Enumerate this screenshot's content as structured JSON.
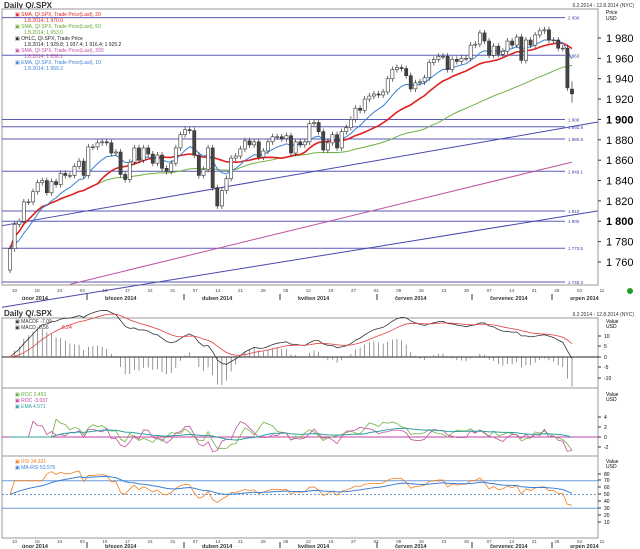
{
  "main": {
    "title": "Daily Q/.SPX",
    "range": "6.2.2014 - 12.8.2014 (NYC)",
    "axis_unit": [
      "Price",
      "USD"
    ],
    "legend": [
      {
        "name": "SMA, Q/.SPX, Trade Price(Last), 20",
        "value": "1.8.2014; 1 970.0",
        "color": "#e02020"
      },
      {
        "name": "SMA, Q/.SPX, Trade Price(Last), 50",
        "value": "1.8.2014; 1 953.0",
        "color": "#60a830"
      },
      {
        "name": "OHLC, Q/.SPX, Trade Price",
        "value": "1.8.2014; 1 929.8; 1 937.4; 1 916.4; 1 925.2",
        "color": "#222222"
      },
      {
        "name": "SMA, Q/.SPX, Trade Price(Last), 200",
        "value": "1.8.2014; 1 858.1",
        "color": "#c050a0"
      },
      {
        "name": "EMA, Q/.SPX, Trade Price(Last), 10",
        "value": "1.8.2014; 1 959.3",
        "color": "#3a7fd5"
      }
    ]
  },
  "chart_data": {
    "type": "candlestick",
    "ylim": [
      1735,
      2005
    ],
    "yticks": [
      1980,
      1960,
      1940,
      1920,
      1900,
      1880,
      1860,
      1840,
      1820,
      1800,
      1780,
      1760
    ],
    "dates": [
      "2014-02-06",
      "2014-02-07",
      "2014-02-10",
      "2014-02-11",
      "2014-02-12",
      "2014-02-13",
      "2014-02-14",
      "2014-02-18",
      "2014-02-19",
      "2014-02-20",
      "2014-02-21",
      "2014-02-24",
      "2014-02-25",
      "2014-02-26",
      "2014-02-27",
      "2014-02-28",
      "2014-03-03",
      "2014-03-04",
      "2014-03-05",
      "2014-03-06",
      "2014-03-07",
      "2014-03-10",
      "2014-03-11",
      "2014-03-12",
      "2014-03-13",
      "2014-03-14",
      "2014-03-17",
      "2014-03-18",
      "2014-03-19",
      "2014-03-20",
      "2014-03-21",
      "2014-03-24",
      "2014-03-25",
      "2014-03-26",
      "2014-03-27",
      "2014-03-28",
      "2014-03-31",
      "2014-04-01",
      "2014-04-02",
      "2014-04-03",
      "2014-04-04",
      "2014-04-07",
      "2014-04-08",
      "2014-04-09",
      "2014-04-10",
      "2014-04-11",
      "2014-04-14",
      "2014-04-15",
      "2014-04-16",
      "2014-04-17",
      "2014-04-21",
      "2014-04-22",
      "2014-04-23",
      "2014-04-24",
      "2014-04-25",
      "2014-04-28",
      "2014-04-29",
      "2014-04-30",
      "2014-05-01",
      "2014-05-02",
      "2014-05-05",
      "2014-05-06",
      "2014-05-07",
      "2014-05-08",
      "2014-05-09",
      "2014-05-12",
      "2014-05-13",
      "2014-05-14",
      "2014-05-15",
      "2014-05-16",
      "2014-05-19",
      "2014-05-20",
      "2014-05-21",
      "2014-05-22",
      "2014-05-23",
      "2014-05-27",
      "2014-05-28",
      "2014-05-29",
      "2014-05-30",
      "2014-06-02",
      "2014-06-03",
      "2014-06-04",
      "2014-06-05",
      "2014-06-06",
      "2014-06-09",
      "2014-06-10",
      "2014-06-11",
      "2014-06-12",
      "2014-06-13",
      "2014-06-16",
      "2014-06-17",
      "2014-06-18",
      "2014-06-19",
      "2014-06-20",
      "2014-06-23",
      "2014-06-24",
      "2014-06-25",
      "2014-06-26",
      "2014-06-27",
      "2014-06-30",
      "2014-07-01",
      "2014-07-02",
      "2014-07-03",
      "2014-07-07",
      "2014-07-08",
      "2014-07-09",
      "2014-07-10",
      "2014-07-11",
      "2014-07-14",
      "2014-07-15",
      "2014-07-16",
      "2014-07-17",
      "2014-07-18",
      "2014-07-21",
      "2014-07-22",
      "2014-07-23",
      "2014-07-24",
      "2014-07-25",
      "2014-07-28",
      "2014-07-29",
      "2014-07-30",
      "2014-07-31",
      "2014-08-01"
    ],
    "close": [
      1773,
      1797,
      1800,
      1819,
      1819,
      1829,
      1838,
      1840,
      1828,
      1839,
      1836,
      1847,
      1845,
      1845,
      1854,
      1859,
      1845,
      1873,
      1873,
      1877,
      1878,
      1877,
      1867,
      1868,
      1846,
      1841,
      1858,
      1872,
      1860,
      1872,
      1866,
      1857,
      1865,
      1852,
      1849,
      1857,
      1872,
      1885,
      1890,
      1889,
      1865,
      1845,
      1851,
      1872,
      1833,
      1815,
      1830,
      1842,
      1862,
      1864,
      1871,
      1879,
      1875,
      1878,
      1863,
      1869,
      1878,
      1883,
      1883,
      1881,
      1884,
      1867,
      1878,
      1875,
      1878,
      1896,
      1897,
      1888,
      1870,
      1877,
      1885,
      1872,
      1888,
      1892,
      1900,
      1911,
      1909,
      1920,
      1923,
      1925,
      1924,
      1927,
      1940,
      1949,
      1951,
      1950,
      1943,
      1930,
      1936,
      1937,
      1941,
      1956,
      1959,
      1962,
      1962,
      1949,
      1959,
      1957,
      1960,
      1960,
      1973,
      1974,
      1985,
      1977,
      1963,
      1972,
      1964,
      1967,
      1977,
      1973,
      1981,
      1958,
      1978,
      1973,
      1983,
      1987,
      1988,
      1978,
      1978,
      1970,
      1970,
      1931,
      1925.2
    ],
    "first_open": 1752,
    "last_ohlc": [
      1929.8,
      1937.4,
      1916.4,
      1925.2
    ],
    "levels": [
      {
        "value": 2000,
        "label": "2 000"
      },
      {
        "value": 1963,
        "label": "1 963"
      },
      {
        "value": 1900,
        "label": "1 900"
      },
      {
        "value": 1892.8,
        "label": "1 892.8"
      },
      {
        "value": 1880.8,
        "label": "1 880.8"
      },
      {
        "value": 1849.1,
        "label": "1 849.1"
      },
      {
        "value": 1810,
        "label": "1 810"
      },
      {
        "value": 1800,
        "label": "1 800"
      },
      {
        "value": 1773.5,
        "label": "1 773.5"
      },
      {
        "value": 1740.3,
        "label": "1 740.3"
      }
    ],
    "trendlines": [
      {
        "from": [
          "2014-02-06",
          1797
        ],
        "to": [
          "2014-08-01",
          1893
        ]
      },
      {
        "from": [
          "2014-03-20",
          1738
        ],
        "to": [
          "2014-08-01",
          1806
        ]
      }
    ],
    "sma200": {
      "from": [
        "2014-02-26",
        1738
      ],
      "to": [
        "2014-08-01",
        1858.1
      ]
    },
    "date_ticks": [
      "10",
      "18",
      "24",
      "03",
      "10",
      "17",
      "24",
      "31",
      "07",
      "14",
      "21",
      "28",
      "05",
      "12",
      "19",
      "27",
      "02",
      "09",
      "16",
      "23",
      "30",
      "07",
      "14",
      "21",
      "28",
      "04",
      "11"
    ],
    "months": [
      "únor 2014",
      "březen 2014",
      "duben 2014",
      "květen 2014",
      "červen 2014",
      "červenec 2014",
      "srpen 2014"
    ]
  },
  "panels": {
    "title": "Daily Q/.SPX",
    "range": "6.2.2014 - 12.8.2014 (NYC)",
    "unit": [
      "Value",
      "USD"
    ],
    "macd": {
      "legend": [
        {
          "text": "MACDF -7.09",
          "color": "#333333"
        },
        {
          "text": "MACD -0.56",
          "color": "#333333"
        },
        {
          "text": "6.24",
          "color": "#e02020"
        }
      ],
      "ticks": [
        "10",
        "5",
        "0",
        "-5",
        "-10"
      ]
    },
    "roc": {
      "legend": [
        {
          "text": "ROC 2.453",
          "color": "#60b030"
        },
        {
          "text": "ROC -3.037",
          "color": "#c040a0"
        },
        {
          "text": "EMA 4.571",
          "color": "#30a0a0"
        }
      ],
      "ticks": [
        "4",
        "2",
        "0",
        "-2"
      ]
    },
    "rsi": {
      "legend": [
        {
          "text": "RSI 34.331",
          "color": "#f08020"
        },
        {
          "text": "MA-RSI 53.575",
          "color": "#3a7fd5"
        }
      ],
      "ticks": [
        "80",
        "70",
        "60",
        "50",
        "40",
        "30",
        "20",
        "10"
      ]
    }
  }
}
